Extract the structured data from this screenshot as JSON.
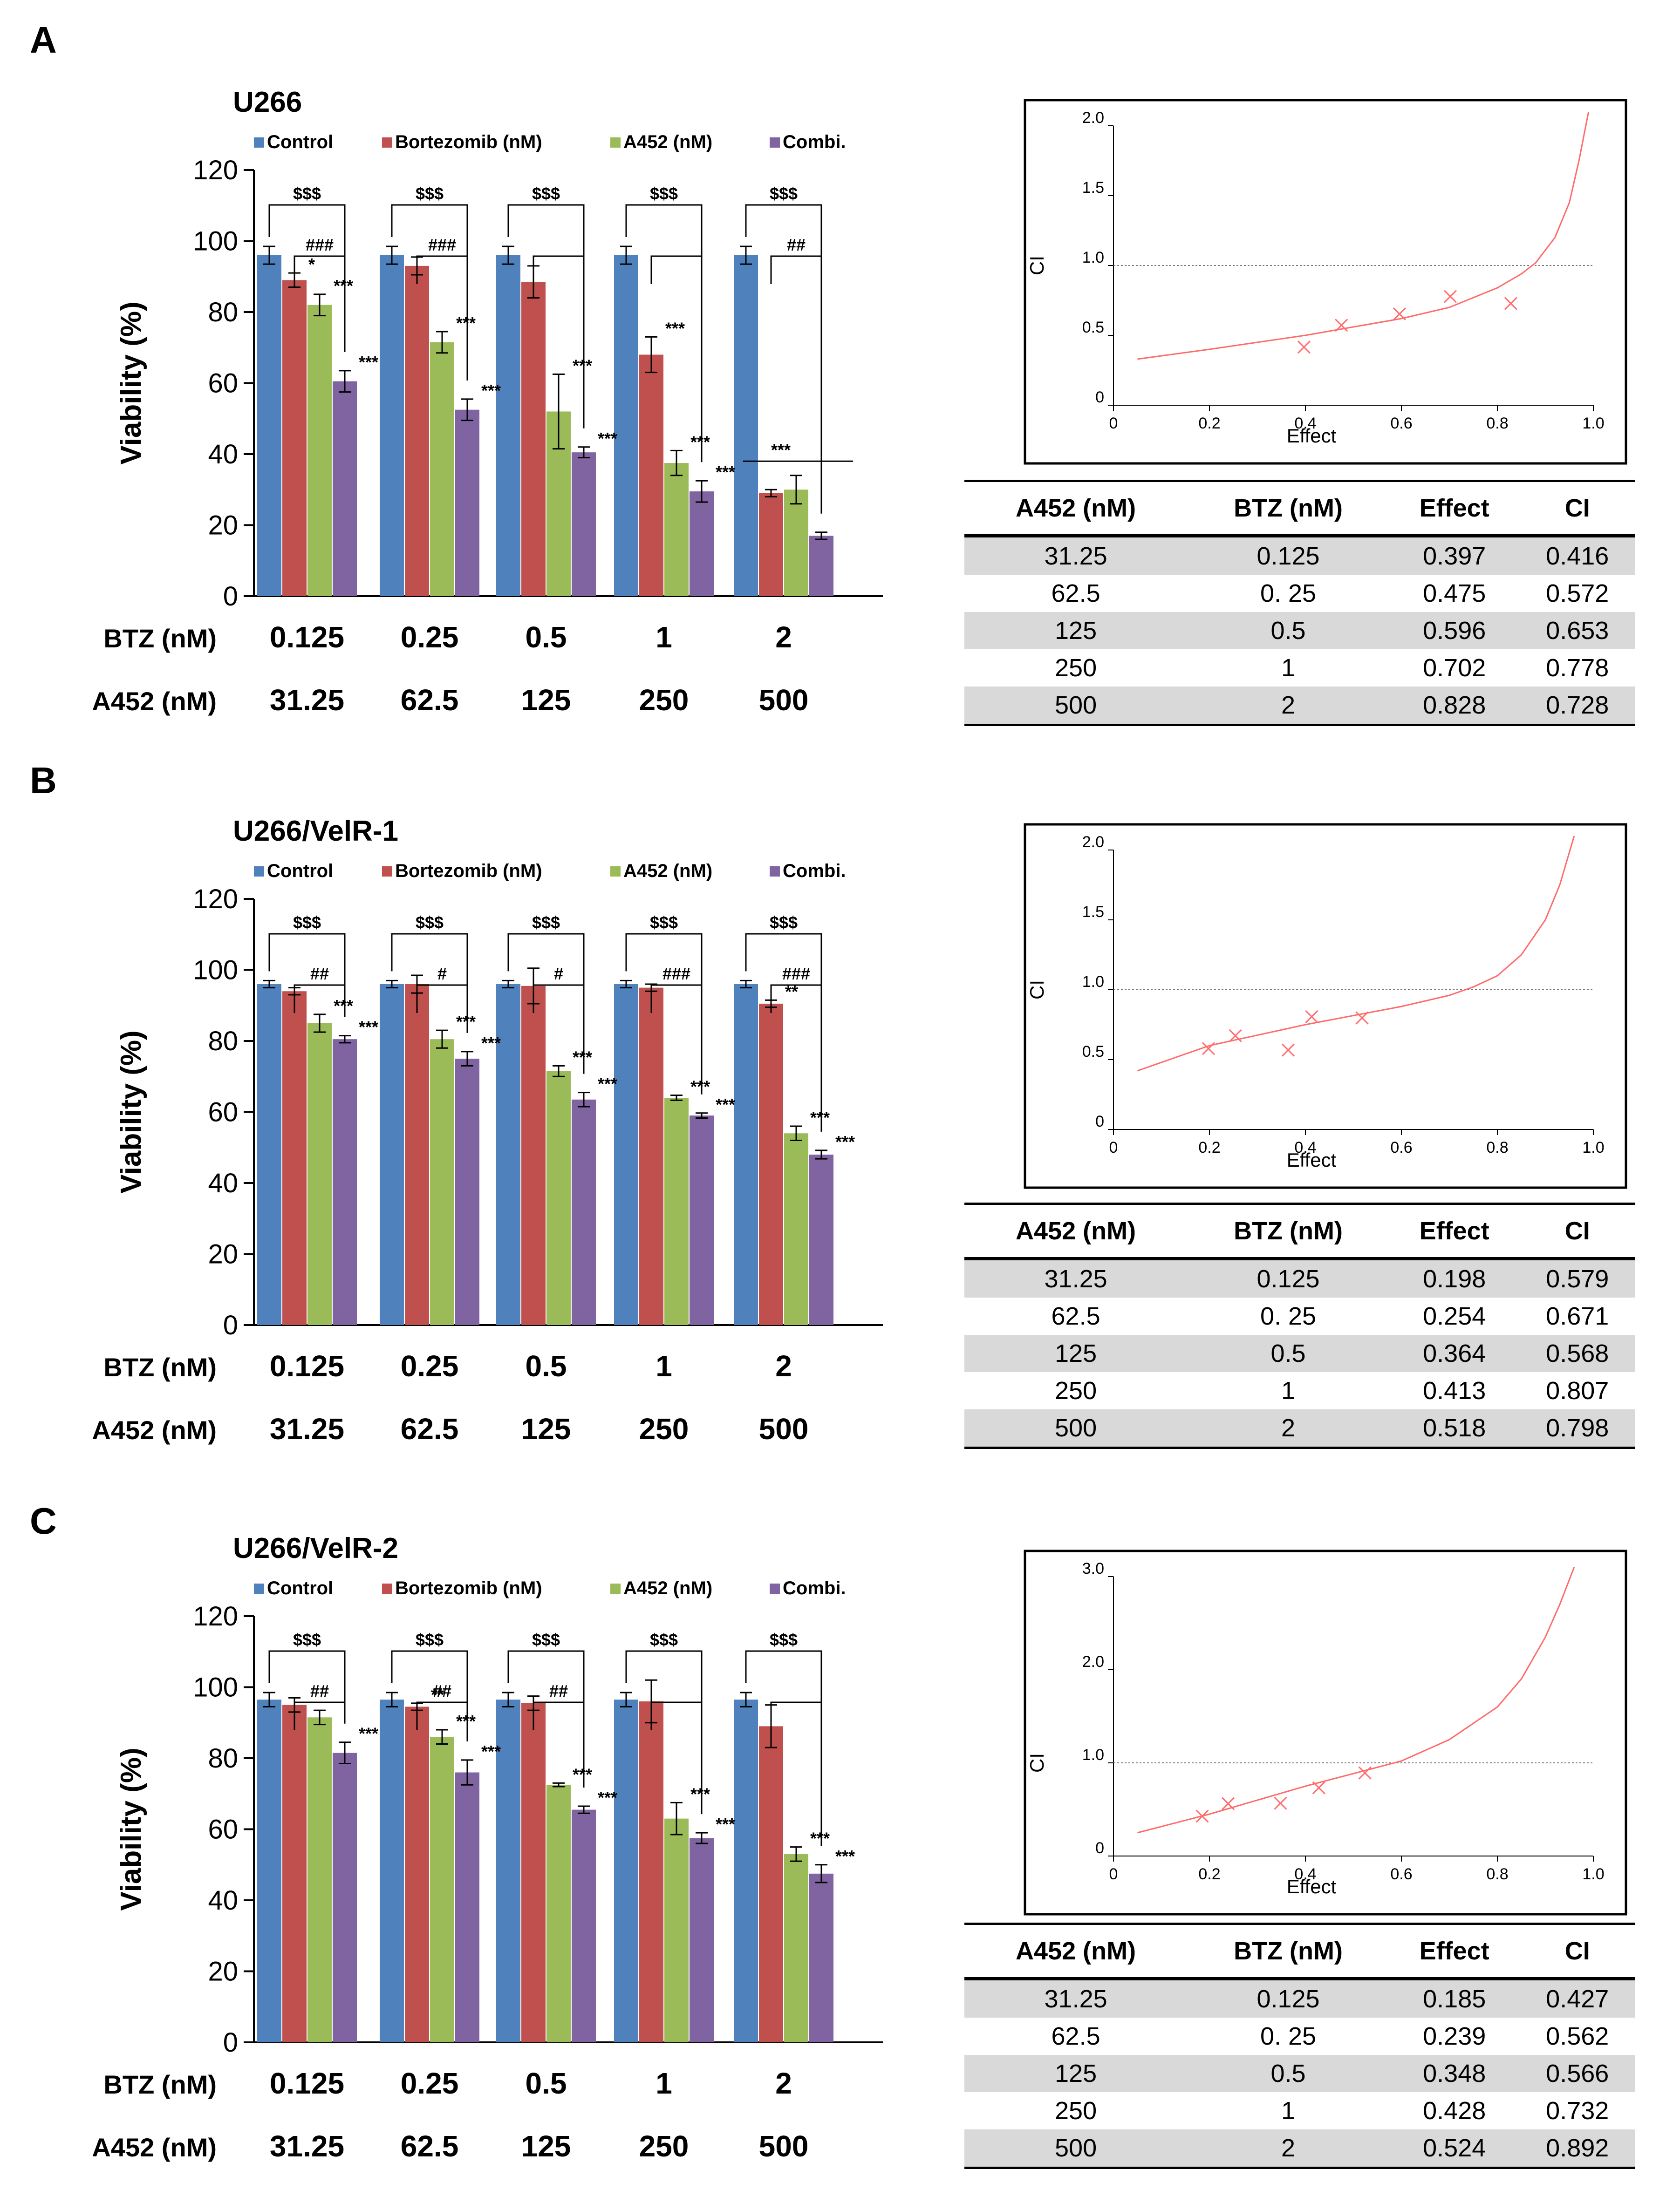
{
  "panels": [
    {
      "letter": "A"
    },
    {
      "letter": "B"
    },
    {
      "letter": "C"
    }
  ],
  "chart_data": [
    {
      "type": "bar",
      "title": "U266",
      "ylabel": "Viability (%)",
      "ylim": [
        0,
        120
      ],
      "yticks": [
        "0",
        "20",
        "40",
        "60",
        "80",
        "100",
        "120"
      ],
      "row_labels": [
        "BTZ (nM)",
        "A452 (nM)"
      ],
      "categories_btz": [
        "0.125",
        "0.25",
        "0.5",
        "1",
        "2"
      ],
      "categories_a452": [
        "31.25",
        "62.5",
        "125",
        "250",
        "500"
      ],
      "legend": [
        "Control",
        "Bortezomib (nM)",
        "A452 (nM)",
        "Combi."
      ],
      "colors": [
        "#4f81bd",
        "#c0504d",
        "#9bbb59",
        "#8064a2"
      ],
      "series": [
        {
          "name": "Control",
          "values": [
            96,
            96,
            96,
            96,
            96
          ],
          "errors": [
            2.5,
            2.5,
            2.5,
            2.5,
            2.5
          ],
          "stars": [
            "",
            "",
            "",
            "",
            ""
          ]
        },
        {
          "name": "Bortezomib (nM)",
          "values": [
            89,
            93,
            88.5,
            68,
            29
          ],
          "errors": [
            2,
            2.5,
            4.5,
            5,
            1
          ],
          "stars": [
            "*",
            "",
            "",
            "***",
            ""
          ]
        },
        {
          "name": "A452 (nM)",
          "values": [
            82,
            71.5,
            52,
            37.5,
            30
          ],
          "errors": [
            3,
            3,
            10.5,
            3.5,
            4
          ],
          "stars": [
            "***",
            "***",
            "***",
            "***",
            ""
          ]
        },
        {
          "name": "Combi.",
          "values": [
            60.5,
            52.5,
            40.5,
            29.5,
            17
          ],
          "errors": [
            3,
            3,
            1.5,
            3,
            1
          ],
          "stars": [
            "***",
            "***",
            "***",
            "***",
            ""
          ]
        }
      ],
      "sig_dollar": [
        "$$$",
        "$$$",
        "$$$",
        "$$$",
        "$$$"
      ],
      "sig_hash": [
        "###",
        "###",
        "",
        "",
        "##"
      ],
      "bracket_all": [
        "***"
      ]
    },
    {
      "type": "bar",
      "title": "U266/VelR-1",
      "ylabel": "Viability (%)",
      "ylim": [
        0,
        120
      ],
      "yticks": [
        "0",
        "20",
        "40",
        "60",
        "80",
        "100",
        "120"
      ],
      "row_labels": [
        "BTZ (nM)",
        "A452 (nM)"
      ],
      "categories_btz": [
        "0.125",
        "0.25",
        "0.5",
        "1",
        "2"
      ],
      "categories_a452": [
        "31.25",
        "62.5",
        "125",
        "250",
        "500"
      ],
      "legend": [
        "Control",
        "Bortezomib (nM)",
        "A452 (nM)",
        "Combi."
      ],
      "colors": [
        "#4f81bd",
        "#c0504d",
        "#9bbb59",
        "#8064a2"
      ],
      "series": [
        {
          "name": "Control",
          "values": [
            96,
            96,
            96,
            96,
            96
          ],
          "errors": [
            1,
            1,
            1,
            1,
            1
          ],
          "stars": [
            "",
            "",
            "",
            "",
            ""
          ]
        },
        {
          "name": "Bortezomib (nM)",
          "values": [
            94,
            96,
            95.5,
            95,
            90.5
          ],
          "errors": [
            1,
            2.5,
            5,
            1,
            1
          ],
          "stars": [
            "",
            "",
            "",
            "",
            "**"
          ]
        },
        {
          "name": "A452 (nM)",
          "values": [
            85,
            80.5,
            71.5,
            64,
            54
          ],
          "errors": [
            2.5,
            2.5,
            1.5,
            0.7,
            2
          ],
          "stars": [
            "***",
            "***",
            "***",
            "***",
            "***"
          ]
        },
        {
          "name": "Combi.",
          "values": [
            80.5,
            75,
            63.5,
            59,
            48
          ],
          "errors": [
            1,
            2,
            2,
            0.7,
            1.2
          ],
          "stars": [
            "***",
            "***",
            "***",
            "***",
            "***"
          ]
        }
      ],
      "sig_dollar": [
        "$$$",
        "$$$",
        "$$$",
        "$$$",
        "$$$"
      ],
      "sig_hash": [
        "##",
        "#",
        "#",
        "###",
        "###"
      ],
      "bracket_all": []
    },
    {
      "type": "bar",
      "title": "U266/VelR-2",
      "ylabel": "Viability (%)",
      "ylim": [
        0,
        120
      ],
      "yticks": [
        "0",
        "20",
        "40",
        "60",
        "80",
        "100",
        "120"
      ],
      "row_labels": [
        "BTZ (nM)",
        "A452 (nM)"
      ],
      "categories_btz": [
        "0.125",
        "0.25",
        "0.5",
        "1",
        "2"
      ],
      "categories_a452": [
        "31.25",
        "62.5",
        "125",
        "250",
        "500"
      ],
      "legend": [
        "Control",
        "Bortezomib (nM)",
        "A452 (nM)",
        "Combi."
      ],
      "colors": [
        "#4f81bd",
        "#c0504d",
        "#9bbb59",
        "#8064a2"
      ],
      "series": [
        {
          "name": "Control",
          "values": [
            96.5,
            96.5,
            96.5,
            96.5,
            96.5
          ],
          "errors": [
            2,
            2,
            2,
            2,
            2
          ],
          "stars": [
            "",
            "",
            "",
            "",
            ""
          ]
        },
        {
          "name": "Bortezomib (nM)",
          "values": [
            95,
            94.5,
            95.5,
            96,
            89
          ],
          "errors": [
            2,
            1,
            2,
            6,
            6
          ],
          "stars": [
            "",
            "**",
            "",
            "",
            ""
          ]
        },
        {
          "name": "A452 (nM)",
          "values": [
            91.5,
            86,
            72.5,
            63,
            53
          ],
          "errors": [
            2,
            2,
            0.5,
            4.5,
            2
          ],
          "stars": [
            "",
            "***",
            "***",
            "***",
            "***"
          ]
        },
        {
          "name": "Combi.",
          "values": [
            81.5,
            76,
            65.5,
            57.5,
            47.5
          ],
          "errors": [
            3,
            3.5,
            1,
            1.5,
            2.5
          ],
          "stars": [
            "***",
            "***",
            "***",
            "***",
            "***"
          ]
        }
      ],
      "sig_dollar": [
        "$$$",
        "$$$",
        "$$$",
        "$$$",
        "$$$"
      ],
      "sig_hash": [
        "##",
        "##",
        "##",
        "",
        ""
      ],
      "bracket_all": []
    },
    {
      "type": "line",
      "xlabel": "Effect",
      "ylabel": "CI",
      "xlim": [
        0,
        1.0
      ],
      "ylim": [
        0,
        2.0
      ],
      "xticks": [
        "0",
        "0.2",
        "0.4",
        "0.6",
        "0.8",
        "1.0"
      ],
      "yticks": [
        "0",
        "0.5",
        "1.0",
        "1.5",
        "2.0"
      ],
      "reference_line": 1.0,
      "curve": {
        "x": [
          0.05,
          0.2,
          0.4,
          0.6,
          0.7,
          0.8,
          0.85,
          0.88,
          0.92,
          0.95,
          0.97,
          0.99
        ],
        "y": [
          0.33,
          0.4,
          0.5,
          0.62,
          0.7,
          0.84,
          0.94,
          1.02,
          1.2,
          1.45,
          1.75,
          2.1
        ]
      },
      "points": {
        "x": [
          0.397,
          0.475,
          0.596,
          0.702,
          0.828
        ],
        "y": [
          0.416,
          0.572,
          0.653,
          0.778,
          0.728
        ]
      }
    },
    {
      "type": "line",
      "xlabel": "Effect",
      "ylabel": "CI",
      "xlim": [
        0,
        1.0
      ],
      "ylim": [
        0,
        2.0
      ],
      "xticks": [
        "0",
        "0.2",
        "0.4",
        "0.6",
        "0.8",
        "1.0"
      ],
      "yticks": [
        "0",
        "0.5",
        "1.0",
        "1.5",
        "2.0"
      ],
      "reference_line": 1.0,
      "curve": {
        "x": [
          0.05,
          0.2,
          0.4,
          0.6,
          0.7,
          0.75,
          0.8,
          0.85,
          0.9,
          0.93,
          0.96
        ],
        "y": [
          0.42,
          0.6,
          0.75,
          0.88,
          0.96,
          1.02,
          1.1,
          1.25,
          1.5,
          1.75,
          2.1
        ]
      },
      "points": {
        "x": [
          0.198,
          0.254,
          0.364,
          0.413,
          0.518
        ],
        "y": [
          0.579,
          0.671,
          0.568,
          0.807,
          0.798
        ]
      }
    },
    {
      "type": "line",
      "xlabel": "Effect",
      "ylabel": "CI",
      "xlim": [
        0,
        1.0
      ],
      "ylim": [
        0,
        3.0
      ],
      "xticks": [
        "0",
        "0.2",
        "0.4",
        "0.6",
        "0.8",
        "1.0"
      ],
      "yticks": [
        "0",
        "1.0",
        "2.0",
        "3.0"
      ],
      "reference_line": 1.0,
      "curve": {
        "x": [
          0.05,
          0.2,
          0.4,
          0.6,
          0.7,
          0.8,
          0.85,
          0.9,
          0.93,
          0.96
        ],
        "y": [
          0.25,
          0.45,
          0.75,
          1.02,
          1.25,
          1.6,
          1.9,
          2.35,
          2.7,
          3.1
        ]
      },
      "points": {
        "x": [
          0.185,
          0.239,
          0.348,
          0.428,
          0.524
        ],
        "y": [
          0.427,
          0.562,
          0.566,
          0.732,
          0.892
        ]
      }
    }
  ],
  "tables": [
    {
      "headers": [
        "A452 (nM)",
        "BTZ (nM)",
        "Effect",
        "CI"
      ],
      "rows": [
        [
          "31.25",
          "0.125",
          "0.397",
          "0.416"
        ],
        [
          "62.5",
          "0. 25",
          "0.475",
          "0.572"
        ],
        [
          "125",
          "0.5",
          "0.596",
          "0.653"
        ],
        [
          "250",
          "1",
          "0.702",
          "0.778"
        ],
        [
          "500",
          "2",
          "0.828",
          "0.728"
        ]
      ]
    },
    {
      "headers": [
        "A452 (nM)",
        "BTZ (nM)",
        "Effect",
        "CI"
      ],
      "rows": [
        [
          "31.25",
          "0.125",
          "0.198",
          "0.579"
        ],
        [
          "62.5",
          "0. 25",
          "0.254",
          "0.671"
        ],
        [
          "125",
          "0.5",
          "0.364",
          "0.568"
        ],
        [
          "250",
          "1",
          "0.413",
          "0.807"
        ],
        [
          "500",
          "2",
          "0.518",
          "0.798"
        ]
      ]
    },
    {
      "headers": [
        "A452 (nM)",
        "BTZ (nM)",
        "Effect",
        "CI"
      ],
      "rows": [
        [
          "31.25",
          "0.125",
          "0.185",
          "0.427"
        ],
        [
          "62.5",
          "0. 25",
          "0.239",
          "0.562"
        ],
        [
          "125",
          "0.5",
          "0.348",
          "0.566"
        ],
        [
          "250",
          "1",
          "0.428",
          "0.732"
        ],
        [
          "500",
          "2",
          "0.524",
          "0.892"
        ]
      ]
    }
  ]
}
